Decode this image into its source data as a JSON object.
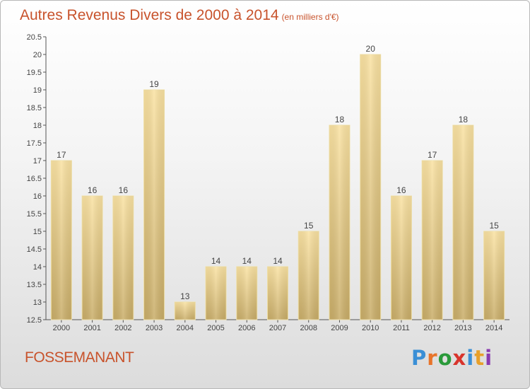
{
  "chart": {
    "title": "Autres Revenus Divers de 2000 à 2014",
    "unit": "(en milliers d'€)",
    "place": "FOSSEMANANT",
    "logo": [
      "P",
      "r",
      "o",
      "x",
      "i",
      "t",
      "i"
    ],
    "logo_colors": [
      "#3a8fd6",
      "#e8742a",
      "#2a9a3a",
      "#d8342c",
      "#3a8fd6",
      "#e8a02a",
      "#8a3ab0"
    ]
  },
  "chart_data": {
    "type": "bar",
    "title": "Autres Revenus Divers de 2000 à 2014",
    "subtitle": "(en milliers d'€)",
    "categories": [
      "2000",
      "2001",
      "2002",
      "2003",
      "2004",
      "2005",
      "2006",
      "2007",
      "2008",
      "2009",
      "2010",
      "2011",
      "2012",
      "2013",
      "2014"
    ],
    "values": [
      17,
      16,
      16,
      19,
      13,
      14,
      14,
      14,
      15,
      18,
      20,
      16,
      17,
      18,
      15
    ],
    "value_labels": [
      "17",
      "16",
      "16",
      "19",
      "13",
      "14",
      "14",
      "14",
      "15",
      "18",
      "20",
      "16",
      "17",
      "18",
      "15"
    ],
    "ylim": [
      12.5,
      20.5
    ],
    "yticks": [
      "12.5",
      "13",
      "13.5",
      "14",
      "14.5",
      "15",
      "15.5",
      "16",
      "16.5",
      "17",
      "17.5",
      "18",
      "18.5",
      "19",
      "19.5",
      "20",
      "20.5"
    ],
    "bar_color": "#e8cf88",
    "grid": false
  }
}
